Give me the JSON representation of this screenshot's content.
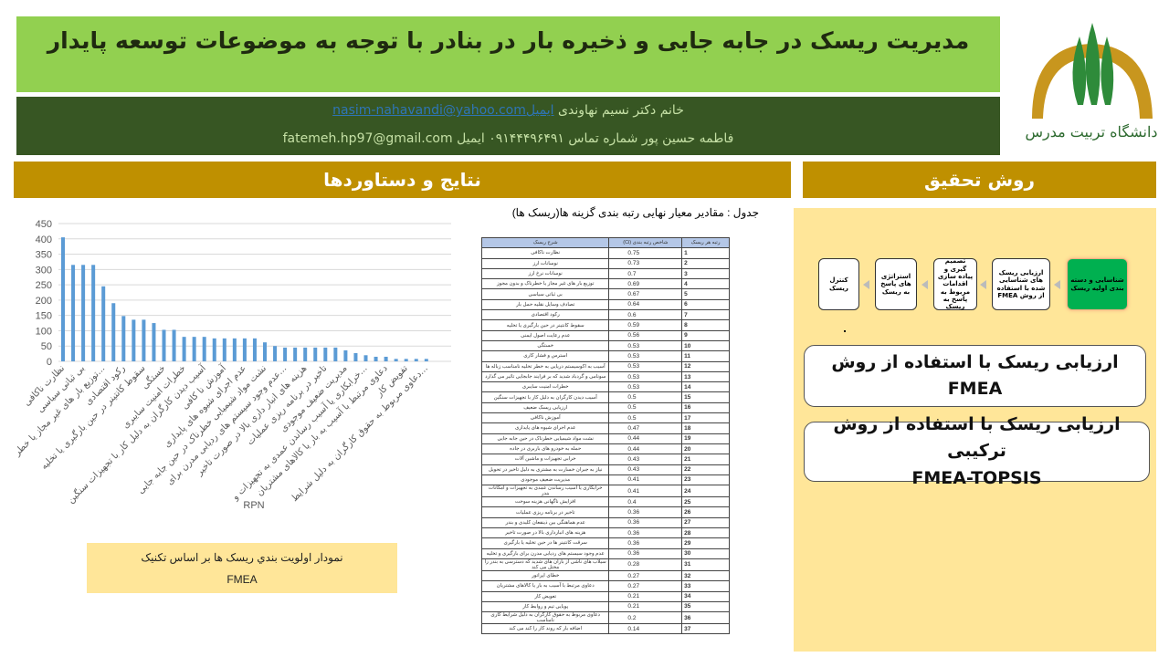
{
  "header": {
    "title": "مدیریت ریسک در جابه جایی و ذخیره بار در بنادر با توجه به موضوعات توسعه پایدار",
    "author1_name": "خانم دکتر نسیم نهاوندی",
    "author1_email_label": "ایمیل",
    "author1_email": "nasim-nahavandi@yahoo.com",
    "author2_line": "فاطمه حسین پور شماره تماس ۰۹۱۴۴۴۹۶۴۹۱ ایمیل fatemeh.hp97@gmail.com",
    "logo_text": "دانشگاه تربیت مدرس"
  },
  "colors": {
    "title_bg": "#92d050",
    "info_bg": "#375623",
    "section_header": "#bf9000",
    "panel_bg": "#ffe699",
    "flow_start": "#00b050",
    "bar": "#5b9bd5"
  },
  "results": {
    "heading": "نتایج و دستاوردها",
    "table_caption": "جدول : مقادیر معیار نهایی رتبه بندی گزینه ها(ریسک ها)",
    "table_headers": [
      "شرح ریسک",
      "شاخص رتبه بندی (Ci)",
      "رتبه هر ریسک"
    ],
    "table_rows": [
      [
        "نظارت ناکافی",
        "0.75",
        "1"
      ],
      [
        "نوسانات ارز",
        "0.73",
        "2"
      ],
      [
        "نوسانات نرخ ارز",
        "0.7",
        "3"
      ],
      [
        "توزیع بار های غیر مجاز یا خطرناک و بدون مجوز",
        "0.69",
        "4"
      ],
      [
        "بی ثباتی سیاسی",
        "0.67",
        "5"
      ],
      [
        "تصادف وسایل نقلیه حمل بار",
        "0.64",
        "6"
      ],
      [
        "رکود اقتصادی",
        "0.6",
        "7"
      ],
      [
        "سقوط کانتینر در حین بارگیری یا تخلیه",
        "0.59",
        "8"
      ],
      [
        "عدم رعایت اصول ایمنی",
        "0.56",
        "9"
      ],
      [
        "خستگی",
        "0.53",
        "10"
      ],
      [
        "استرس و فشار کاری",
        "0.53",
        "11"
      ],
      [
        "آسیب به اکوسیستم دریایی به خطر تخلیه نامناسب زباله ها",
        "0.53",
        "12"
      ],
      [
        "سونامی و گردباد شدید که بر فرایند جابجایی تاثیر می گذارد",
        "0.53",
        "13"
      ],
      [
        "خطرات امنیت سایبری",
        "0.53",
        "14"
      ],
      [
        "آسیب دیدن کارگران به دلیل کار با تجهیزات سنگین",
        "0.5",
        "15"
      ],
      [
        "ارزیابی ریسک ضعیف",
        "0.5",
        "16"
      ],
      [
        "آموزش ناکافی",
        "0.5",
        "17"
      ],
      [
        "عدم اجرای شیوه های پایداری",
        "0.47",
        "18"
      ],
      [
        "نشت مواد شیمیایی خطرناک در حین جابه جایی",
        "0.44",
        "19"
      ],
      [
        "حمله به خودرو های باربری در جاده",
        "0.44",
        "20"
      ],
      [
        "خرابی تجهیزات و ماشین آلات",
        "0.43",
        "21"
      ],
      [
        "نیاز به جبران خسارت به مشتری به دلیل تاخیر در تحویل",
        "0.43",
        "22"
      ],
      [
        "مدیریت ضعیف موجودی",
        "0.41",
        "23"
      ],
      [
        "خرابکاری یا آسیب رساندن عمدی به تجهیزات و امکانات بندر",
        "0.41",
        "24"
      ],
      [
        "افزایش ناگهانی هزینه سوخت",
        "0.4",
        "25"
      ],
      [
        "تاخیر در برنامه ریزی عملیات",
        "0.36",
        "26"
      ],
      [
        "عدم هماهنگی بین ذینفعان کلیدی و بندر",
        "0.36",
        "27"
      ],
      [
        "هزینه های انبارداری بالا در صورت تاخیر",
        "0.36",
        "28"
      ],
      [
        "سرقت کانتینر ها در حین تخلیه یا بارگیری",
        "0.36",
        "29"
      ],
      [
        "عدم وجود سیستم های ردیابی مدرن برای بارگیری و تخلیه",
        "0.36",
        "30"
      ],
      [
        "سیلاب های ناشی از باران های شدید که دسترسی به بندر را مختل می کند",
        "0.28",
        "31"
      ],
      [
        "خطای اپراتور",
        "0.27",
        "32"
      ],
      [
        "دعاوی مرتبط با آسیب به بار یا کالاهای مشتریان",
        "0.27",
        "33"
      ],
      [
        "تعویض کار",
        "0.21",
        "34"
      ],
      [
        "پویایی تیم و روابط کار",
        "0.21",
        "35"
      ],
      [
        "دعاوی مربوط به حقوق کارگران به دلیل شرایط کاری نامناسب",
        "0.2",
        "36"
      ],
      [
        "اضافه بار که روند کار را کند می کند",
        "0.14",
        "37"
      ]
    ],
    "chart_caption_line1": "نمودار اولویت بندي ریسک ها بر اساس تکنیک",
    "chart_caption_line2": "FMEA"
  },
  "chart_data": {
    "type": "bar",
    "xlabel": "RPN",
    "ylim": [
      0,
      450
    ],
    "yticks": [
      0,
      50,
      100,
      150,
      200,
      250,
      300,
      350,
      400,
      450
    ],
    "grid": true,
    "categories": [
      "نظارت ناکافی",
      "",
      "بی ثباتی سیاسی",
      "",
      "توزیع بار های غیر مجاز یا خطر...",
      "",
      "رکود اقتصادی",
      "",
      "سقوط کانتینر در حین بارگیری یا تخلیه",
      "",
      "خستگی",
      "",
      "خطرات امنیت سایبری",
      "",
      "آسیب دیدن کارگران به دلیل کار با تجهیزات سنگین",
      "",
      "آموزش نا کافی",
      "",
      "عدم اجرای شیوه های پایداری",
      "",
      "نشت مواد شیمیایی خطرناک در حین جابه جایی",
      "",
      "عدم وجود سیستم های ردیابی مدرن برای...",
      "",
      "هزینه های انبار داری بالا در صورت تاخیر",
      "",
      "تاخیر در برنامه ریزی عملیات",
      "",
      "مدیریت ضعیف موجودی",
      "",
      "خرابکاری یا آسیب رساندن عمدی به تجهیزات و...",
      "",
      "دعاوی مرتبط با آسیب به بار یا کالاهای مشتریان",
      "",
      "تفویض کار",
      "",
      "دعاوی مربوط به حقوق کارگران به دلیل شرایط..."
    ],
    "values": [
      405,
      315,
      315,
      315,
      245,
      190,
      148,
      136,
      136,
      125,
      103,
      103,
      80,
      80,
      80,
      75,
      75,
      75,
      75,
      75,
      62,
      50,
      45,
      45,
      45,
      45,
      45,
      45,
      36,
      27,
      20,
      15,
      15,
      8,
      8,
      8,
      8
    ]
  },
  "method": {
    "heading": "روش تحقیق",
    "flow_steps": [
      "شناسایی و دسته بندی اولیه ریسک",
      "ارزیابی ریسک های شناسایی شده با استفاده از روش FMEA",
      "تصمیم گیری و پیاده سازی اقدامات مربوط به پاسخ به ریسک",
      "استراتژی های پاسخ به ریسک",
      "کنترل ریسک"
    ],
    "box1_line1": "ارزیابی ریسک با استفاده از روش",
    "box1_line2": "FMEA",
    "box2_line1": "ارزیابی ریسک با استفاده از روش ترکیبی",
    "box2_line2": "FMEA-TOPSIS"
  }
}
